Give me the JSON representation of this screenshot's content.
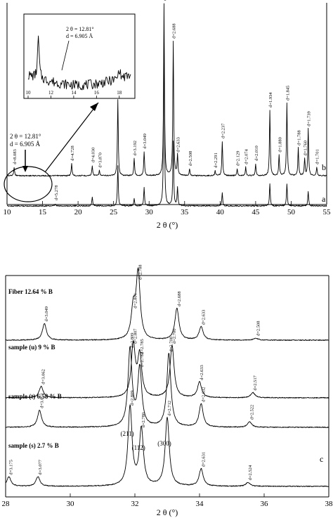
{
  "chart_data": [
    {
      "type": "line",
      "panel": "top",
      "xlabel": "2 θ (°)",
      "xlim": [
        10,
        55
      ],
      "x_ticks": [
        "10",
        "15",
        "20",
        "25",
        "30",
        "35",
        "40",
        "45",
        "50",
        "55"
      ],
      "grid": false,
      "series": [
        {
          "name": "b",
          "peaks": [
            {
              "x": 11.0,
              "h": 0.05,
              "label": "d=8.083"
            },
            {
              "x": 19.1,
              "h": 0.07,
              "label": "d=4.728"
            },
            {
              "x": 22.0,
              "h": 0.06,
              "label": "d=4.030"
            },
            {
              "x": 23.0,
              "h": 0.03,
              "label": "d=3.870"
            },
            {
              "x": 25.6,
              "h": 0.44,
              "label": "d=3.477"
            },
            {
              "x": 27.9,
              "h": 0.1,
              "label": "d=3.192"
            },
            {
              "x": 29.3,
              "h": 0.14,
              "label": "d=3.049"
            },
            {
              "x": 32.1,
              "h": 1.0,
              "label": "d=2.788"
            },
            {
              "x": 33.4,
              "h": 0.78,
              "label": "d=2.688"
            },
            {
              "x": 34.0,
              "h": 0.12,
              "label": "d=2.633"
            },
            {
              "x": 35.7,
              "h": 0.04,
              "label": "d=2.508"
            },
            {
              "x": 39.3,
              "h": 0.03,
              "label": "d=2.291"
            },
            {
              "x": 40.3,
              "h": 0.2,
              "label": "d=2.237"
            },
            {
              "x": 42.4,
              "h": 0.04,
              "label": "d=2.129"
            },
            {
              "x": 43.6,
              "h": 0.05,
              "label": "d=2.074"
            },
            {
              "x": 45.0,
              "h": 0.07,
              "label": "d=2.010"
            },
            {
              "x": 47.0,
              "h": 0.38,
              "label": "d=1.934"
            },
            {
              "x": 48.3,
              "h": 0.12,
              "label": "d=1.880"
            },
            {
              "x": 49.4,
              "h": 0.42,
              "label": "d=1.845"
            },
            {
              "x": 51.0,
              "h": 0.16,
              "label": "d=1.788"
            },
            {
              "x": 51.9,
              "h": 0.1,
              "label": "d=1.760"
            },
            {
              "x": 52.4,
              "h": 0.27,
              "label": "d=1.739"
            },
            {
              "x": 53.6,
              "h": 0.05,
              "label": "d=1.701"
            }
          ]
        },
        {
          "name": "a",
          "peaks": [
            {
              "x": 16.8,
              "h": 0.01,
              "label": "d=5.278"
            },
            {
              "x": 22.0,
              "h": 0.05,
              "label": ""
            },
            {
              "x": 25.6,
              "h": 0.22,
              "label": ""
            },
            {
              "x": 27.9,
              "h": 0.04,
              "label": ""
            },
            {
              "x": 29.3,
              "h": 0.1,
              "label": ""
            },
            {
              "x": 32.1,
              "h": 0.95,
              "label": ""
            },
            {
              "x": 33.4,
              "h": 0.35,
              "label": ""
            },
            {
              "x": 34.0,
              "h": 0.1,
              "label": ""
            },
            {
              "x": 40.3,
              "h": 0.07,
              "label": ""
            },
            {
              "x": 47.0,
              "h": 0.12,
              "label": ""
            },
            {
              "x": 49.4,
              "h": 0.12,
              "label": ""
            },
            {
              "x": 52.4,
              "h": 0.08,
              "label": ""
            }
          ]
        }
      ],
      "annotations": {
        "arrow_line1": "2 θ = 12.81°",
        "arrow_line2": "d = 6.905 Å",
        "inset_line1": "2 θ = 12.81°",
        "inset_line2": "d = 6.905 Å"
      },
      "inset": {
        "xlim": [
          10,
          19
        ],
        "x_ticks": [
          "10",
          "12",
          "14",
          "16",
          "18"
        ],
        "peaks": [
          {
            "x": 10.9,
            "h": 1.0
          },
          {
            "x": 18.0,
            "h": 0.25
          }
        ]
      }
    },
    {
      "type": "line",
      "panel": "bottom",
      "panel_label": "c",
      "xlabel": "2 θ (°)",
      "xlim": [
        28,
        38
      ],
      "x_ticks": [
        "28",
        "30",
        "32",
        "34",
        "36",
        "38"
      ],
      "grid": false,
      "series": [
        {
          "name": "Fiber 12.64 % B",
          "peaks": [
            {
              "x": 29.2,
              "h": 0.25,
              "label": "d=3.049"
            },
            {
              "x": 31.95,
              "h": 0.45,
              "label": "d=2.801"
            },
            {
              "x": 32.1,
              "h": 1.0,
              "label": "d=2.788"
            },
            {
              "x": 33.3,
              "h": 0.48,
              "label": "d=2.688"
            },
            {
              "x": 34.05,
              "h": 0.2,
              "label": "d=2.633"
            },
            {
              "x": 35.75,
              "h": 0.03,
              "label": "d=2.508"
            }
          ]
        },
        {
          "name": "sample (u)  9 % B",
          "peaks": [
            {
              "x": 29.1,
              "h": 0.22,
              "label": "d=3.062"
            },
            {
              "x": 31.95,
              "h": 1.0,
              "label": "d=2.807"
            },
            {
              "x": 32.15,
              "h": 0.8,
              "label": "d=2.785"
            },
            {
              "x": 33.15,
              "h": 1.0,
              "label": "d=2.700"
            },
            {
              "x": 34.0,
              "h": 0.3,
              "label": "d=2.633"
            },
            {
              "x": 35.65,
              "h": 0.1,
              "label": "d=2.517"
            }
          ]
        },
        {
          "name": "sample (t)  6.58 % B",
          "peaks": [
            {
              "x": 29.05,
              "h": 0.22,
              "label": "d=3.071"
            },
            {
              "x": 31.85,
              "h": 1.0,
              "label": "d=2.809"
            },
            {
              "x": 32.15,
              "h": 0.75,
              "label": "d=2.782"
            },
            {
              "x": 33.05,
              "h": 0.95,
              "label": "d=2.708"
            },
            {
              "x": 34.05,
              "h": 0.3,
              "label": "d=2.632"
            },
            {
              "x": 35.55,
              "h": 0.07,
              "label": "d=2.522"
            }
          ]
        },
        {
          "name": "sample (s)  2.7 % B",
          "peaks": [
            {
              "x": 28.1,
              "h": 0.12,
              "label": "d=3.175"
            },
            {
              "x": 29.0,
              "h": 0.12,
              "label": "d=3.077"
            },
            {
              "x": 31.85,
              "h": 1.0,
              "label": "d=2.809"
            },
            {
              "x": 32.2,
              "h": 0.72,
              "label": "d=2.780"
            },
            {
              "x": 33.0,
              "h": 0.87,
              "label": "d=2.712"
            },
            {
              "x": 34.05,
              "h": 0.22,
              "label": "d=2.631"
            },
            {
              "x": 35.5,
              "h": 0.05,
              "label": "d=2.524"
            }
          ]
        }
      ],
      "hkl_labels": [
        {
          "x": 31.85,
          "text": "(211)"
        },
        {
          "x": 32.2,
          "text": "(112)"
        },
        {
          "x": 33.0,
          "text": "(300)"
        }
      ]
    }
  ]
}
